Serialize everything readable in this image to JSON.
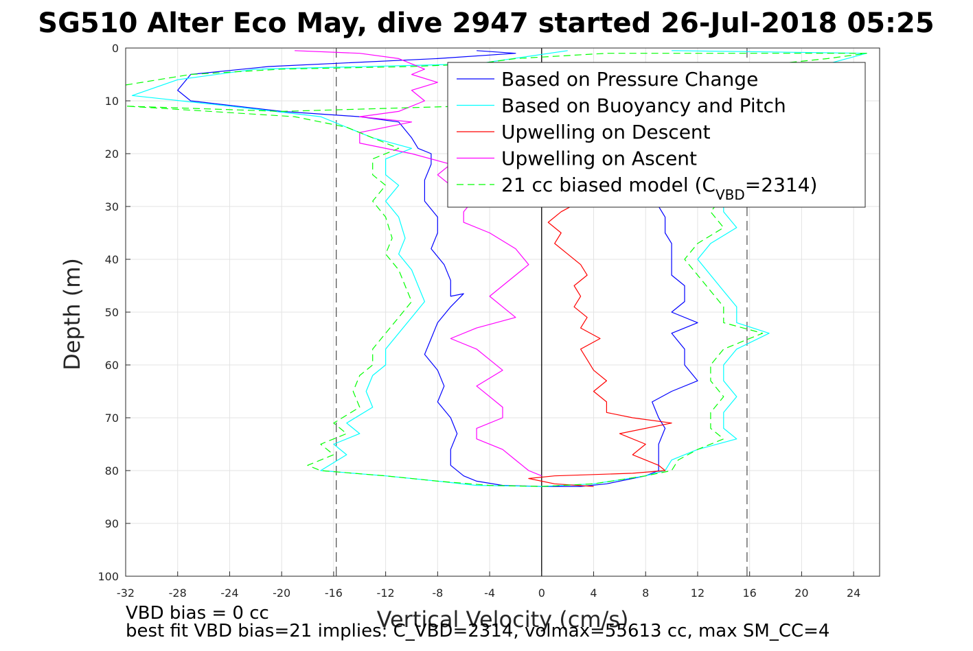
{
  "chart_data": {
    "type": "line",
    "title": "SG510 Alter Eco May, dive 2947 started 26-Jul-2018 05:25",
    "xlabel": "Vertical Velocity (cm/s)",
    "ylabel": "Depth (m)",
    "xlim": [
      -32,
      26
    ],
    "ylim": [
      0,
      100
    ],
    "y_reversed": true,
    "grid": true,
    "xticks": [
      -32,
      -28,
      -24,
      -20,
      -16,
      -12,
      -8,
      -4,
      0,
      4,
      8,
      12,
      16,
      20,
      24
    ],
    "yticks": [
      0,
      10,
      20,
      30,
      40,
      50,
      60,
      70,
      80,
      90,
      100
    ],
    "legend_placement": "top-right",
    "reference_lines": [
      {
        "axis": "x",
        "value": -15.8,
        "style": "dashed",
        "color": "#555555"
      },
      {
        "axis": "x",
        "value": 15.8,
        "style": "dashed",
        "color": "#555555"
      },
      {
        "axis": "x",
        "value": 0,
        "style": "solid",
        "color": "#000000"
      }
    ],
    "series": [
      {
        "name": "Based on Pressure Change",
        "color": "#0000ff",
        "dash": "solid",
        "points": [
          [
            -5,
            0.5
          ],
          [
            -2,
            1
          ],
          [
            -8,
            2
          ],
          [
            -21,
            3.5
          ],
          [
            -27,
            5
          ],
          [
            -28,
            8
          ],
          [
            -27,
            10
          ],
          [
            -20,
            12
          ],
          [
            -14,
            13
          ],
          [
            -11,
            14
          ],
          [
            -10,
            17
          ],
          [
            -9.5,
            19
          ],
          [
            -8.5,
            20
          ],
          [
            -8.5,
            22
          ],
          [
            -9,
            25
          ],
          [
            -9,
            29
          ],
          [
            -8,
            32
          ],
          [
            -8,
            35
          ],
          [
            -8.5,
            38
          ],
          [
            -7.5,
            41
          ],
          [
            -7,
            44
          ],
          [
            -7,
            47
          ],
          [
            -6,
            46.5
          ],
          [
            -7,
            49
          ],
          [
            -8,
            52
          ],
          [
            -8.5,
            55
          ],
          [
            -9,
            58
          ],
          [
            -8,
            61
          ],
          [
            -7.5,
            64
          ],
          [
            -8,
            67
          ],
          [
            -7,
            70
          ],
          [
            -6.5,
            73
          ],
          [
            -7,
            76
          ],
          [
            -7,
            79
          ],
          [
            -6,
            81
          ],
          [
            -5,
            82
          ],
          [
            -3,
            82.8
          ],
          [
            0,
            83
          ],
          [
            3,
            83
          ],
          [
            5,
            82.5
          ],
          [
            8,
            81
          ],
          [
            9,
            80
          ],
          [
            9,
            78
          ],
          [
            9,
            75
          ],
          [
            9.5,
            72
          ],
          [
            9,
            70
          ],
          [
            8.5,
            67
          ],
          [
            10,
            65
          ],
          [
            12,
            63
          ],
          [
            11,
            60
          ],
          [
            11,
            57
          ],
          [
            10,
            54
          ],
          [
            12,
            52
          ],
          [
            10,
            50
          ],
          [
            11,
            48
          ],
          [
            11,
            45
          ],
          [
            10,
            43
          ],
          [
            10,
            40
          ],
          [
            10,
            37
          ],
          [
            9.5,
            35
          ],
          [
            9.5,
            32
          ],
          [
            9,
            30
          ]
        ]
      },
      {
        "name": "Based on Buoyancy and Pitch",
        "color": "#00ffff",
        "dash": "solid",
        "points": [
          [
            2,
            0.5
          ],
          [
            -5,
            3
          ],
          [
            -22,
            4
          ],
          [
            -28,
            6
          ],
          [
            -31.5,
            9
          ],
          [
            -24,
            11
          ],
          [
            -17,
            13
          ],
          [
            -15,
            15
          ],
          [
            -13,
            17
          ],
          [
            -10,
            19
          ],
          [
            -12,
            21
          ],
          [
            -12,
            24
          ],
          [
            -11,
            26
          ],
          [
            -12,
            29
          ],
          [
            -11,
            32
          ],
          [
            -10.5,
            36
          ],
          [
            -11,
            39
          ],
          [
            -10,
            42
          ],
          [
            -9.5,
            45
          ],
          [
            -9,
            48
          ],
          [
            -10,
            51
          ],
          [
            -11,
            54
          ],
          [
            -12,
            57
          ],
          [
            -12,
            60
          ],
          [
            -13,
            62
          ],
          [
            -13.5,
            65
          ],
          [
            -13,
            68
          ],
          [
            -15,
            71
          ],
          [
            -14,
            73
          ],
          [
            -16,
            75
          ],
          [
            -15,
            77
          ],
          [
            -17,
            80
          ],
          [
            -12,
            81
          ],
          [
            -8,
            82
          ],
          [
            -5,
            82.8
          ],
          [
            0,
            83
          ],
          [
            4,
            82.5
          ],
          [
            8,
            81
          ],
          [
            9.5,
            80
          ],
          [
            10,
            78
          ],
          [
            12,
            76
          ],
          [
            15,
            74
          ],
          [
            14,
            72
          ],
          [
            14,
            69
          ],
          [
            15,
            66
          ],
          [
            14,
            63
          ],
          [
            14,
            60
          ],
          [
            15,
            57
          ],
          [
            17.5,
            54
          ],
          [
            15,
            52
          ],
          [
            15,
            49
          ],
          [
            14,
            46
          ],
          [
            13,
            43
          ],
          [
            12,
            40
          ],
          [
            13,
            37
          ],
          [
            15,
            34
          ],
          [
            14,
            31
          ],
          [
            14,
            28
          ],
          [
            16,
            26
          ],
          [
            16,
            22
          ],
          [
            18,
            18
          ],
          [
            20,
            12
          ],
          [
            21,
            6
          ],
          [
            22,
            3
          ],
          [
            25,
            1
          ],
          [
            10,
            0.5
          ]
        ]
      },
      {
        "name": "Upwelling on Descent",
        "color": "#ff0000",
        "dash": "solid",
        "points": [
          [
            3,
            29
          ],
          [
            1.5,
            31
          ],
          [
            0.5,
            33
          ],
          [
            1.5,
            35
          ],
          [
            1,
            37
          ],
          [
            2,
            39
          ],
          [
            3,
            41
          ],
          [
            3.5,
            43
          ],
          [
            2.5,
            45
          ],
          [
            3,
            47
          ],
          [
            2.5,
            49
          ],
          [
            3.5,
            51
          ],
          [
            3,
            53
          ],
          [
            4.5,
            55
          ],
          [
            3,
            57
          ],
          [
            3.5,
            59
          ],
          [
            4,
            61
          ],
          [
            5,
            63
          ],
          [
            4,
            65
          ],
          [
            5,
            67
          ],
          [
            5,
            69
          ],
          [
            7,
            70
          ],
          [
            10,
            71
          ],
          [
            6,
            73
          ],
          [
            8,
            75
          ],
          [
            7,
            77
          ],
          [
            9,
            79
          ],
          [
            9.5,
            80
          ],
          [
            7,
            80.5
          ],
          [
            1,
            81
          ],
          [
            -1,
            81.5
          ],
          [
            1,
            82.5
          ],
          [
            4,
            83
          ]
        ]
      },
      {
        "name": "Upwelling on Ascent",
        "color": "#ff00ff",
        "dash": "solid",
        "points": [
          [
            -19,
            0.5
          ],
          [
            -14,
            1
          ],
          [
            -11,
            2
          ],
          [
            -10,
            3
          ],
          [
            -9,
            4
          ],
          [
            -10,
            5
          ],
          [
            -8,
            6.5
          ],
          [
            -10,
            8
          ],
          [
            -9,
            10
          ],
          [
            -11,
            12
          ],
          [
            -14,
            13
          ],
          [
            -10,
            14
          ],
          [
            -14,
            16
          ],
          [
            -14,
            18
          ],
          [
            -10,
            20
          ],
          [
            -7,
            22
          ],
          [
            -8,
            24
          ],
          [
            -7,
            26
          ],
          [
            -5,
            28
          ],
          [
            -6,
            31
          ],
          [
            -6,
            33
          ],
          [
            -4,
            35
          ],
          [
            -2,
            38
          ],
          [
            -1,
            41
          ],
          [
            -2,
            43
          ],
          [
            -3,
            45
          ],
          [
            -4,
            47
          ],
          [
            -3,
            49
          ],
          [
            -2,
            51
          ],
          [
            -5,
            53
          ],
          [
            -7,
            55
          ],
          [
            -5,
            57
          ],
          [
            -4,
            59
          ],
          [
            -3,
            61
          ],
          [
            -5,
            64
          ],
          [
            -4,
            66
          ],
          [
            -3,
            68
          ],
          [
            -3,
            70
          ],
          [
            -5,
            72
          ],
          [
            -5,
            74
          ],
          [
            -3,
            76
          ],
          [
            -2,
            78
          ],
          [
            -1,
            80
          ],
          [
            0,
            81
          ]
        ]
      },
      {
        "name": "21 cc biased model (C",
        "color": "#00ff00",
        "dash": "dashed",
        "points": [
          [
            -32,
            7
          ],
          [
            -27,
            5
          ],
          [
            -20,
            4
          ],
          [
            -10,
            3.5
          ],
          [
            -5,
            3
          ],
          [
            -2,
            2
          ],
          [
            5,
            1
          ],
          [
            22,
            1
          ],
          [
            25,
            1
          ],
          [
            22,
            2
          ],
          [
            18,
            3
          ],
          [
            12,
            5
          ],
          [
            8,
            10
          ],
          [
            -20,
            12
          ],
          [
            -32,
            11
          ],
          [
            -19,
            13
          ],
          [
            -15,
            15
          ],
          [
            -13,
            17
          ],
          [
            -11,
            19
          ],
          [
            -13,
            21
          ],
          [
            -13,
            24
          ],
          [
            -12,
            26
          ],
          [
            -13,
            29
          ],
          [
            -12,
            32
          ],
          [
            -11.5,
            36
          ],
          [
            -12,
            39
          ],
          [
            -11,
            42
          ],
          [
            -10.5,
            45
          ],
          [
            -10,
            48
          ],
          [
            -11,
            51
          ],
          [
            -12,
            54
          ],
          [
            -13,
            57
          ],
          [
            -13,
            60
          ],
          [
            -14,
            62
          ],
          [
            -14.5,
            65
          ],
          [
            -14,
            68
          ],
          [
            -16,
            71
          ],
          [
            -15,
            73
          ],
          [
            -17,
            75
          ],
          [
            -16,
            77
          ],
          [
            -18,
            79
          ],
          [
            -17,
            80
          ],
          [
            -12,
            81
          ],
          [
            -8,
            82
          ],
          [
            -4,
            82.8
          ],
          [
            0,
            83
          ],
          [
            4,
            82.5
          ],
          [
            8,
            81
          ],
          [
            10,
            80
          ],
          [
            10.5,
            78
          ],
          [
            12,
            76
          ],
          [
            14,
            74
          ],
          [
            13,
            72
          ],
          [
            13,
            69
          ],
          [
            14,
            66
          ],
          [
            13,
            63
          ],
          [
            13,
            60
          ],
          [
            14,
            57
          ],
          [
            17,
            54
          ],
          [
            14,
            52
          ],
          [
            14,
            49
          ],
          [
            13,
            46
          ],
          [
            12,
            43
          ],
          [
            11,
            40
          ],
          [
            12,
            37
          ],
          [
            14,
            34
          ],
          [
            13,
            31
          ],
          [
            14,
            28
          ],
          [
            16,
            26
          ]
        ]
      }
    ],
    "legend": [
      {
        "label": "Based on Pressure Change"
      },
      {
        "label": "Based on Buoyancy and Pitch"
      },
      {
        "label": "Upwelling on Descent"
      },
      {
        "label": "Upwelling on Ascent"
      },
      {
        "label": "21 cc biased model (C",
        "subscript": "VBD",
        "suffix": "=2314)"
      }
    ],
    "footer": [
      "VBD bias = 0 cc",
      "best fit VBD bias=21 implies: C_VBD=2314, volmax=55613 cc, max SM_CC=4"
    ]
  }
}
